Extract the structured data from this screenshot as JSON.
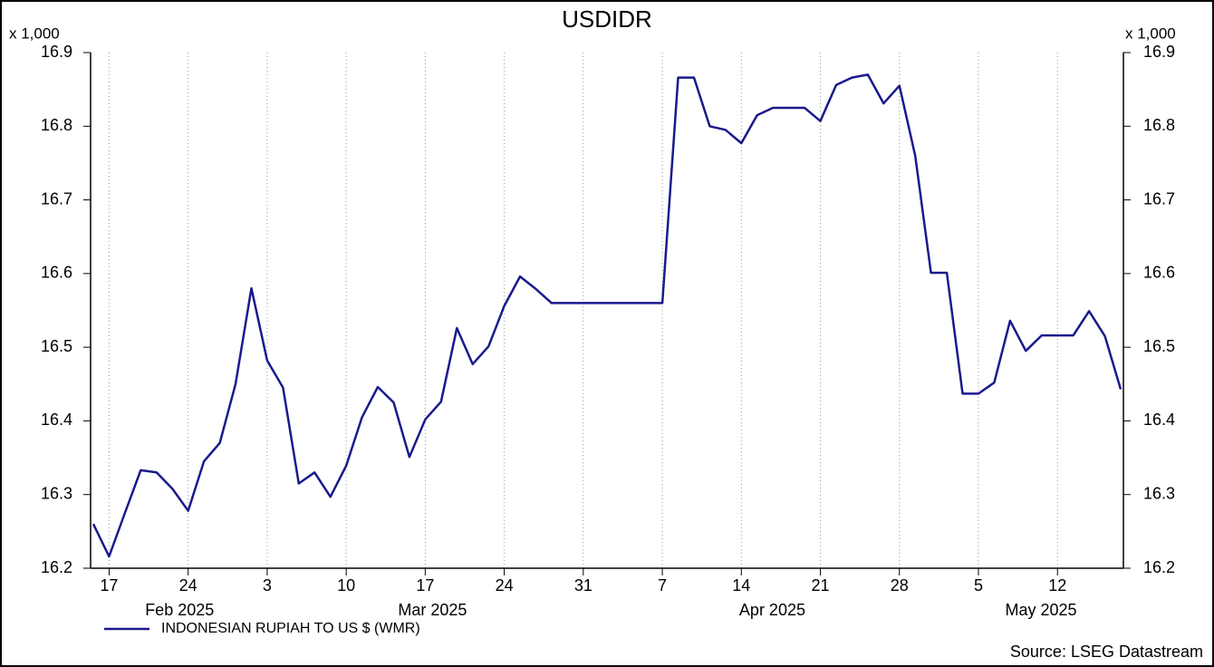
{
  "chart_data": {
    "type": "line",
    "title": "USDIDR",
    "y_multiplier": "x 1,000",
    "source": "Source: LSEG Datastream",
    "x": [
      "2025-02-14",
      "2025-02-17",
      "2025-02-18",
      "2025-02-19",
      "2025-02-20",
      "2025-02-21",
      "2025-02-24",
      "2025-02-25",
      "2025-02-26",
      "2025-02-27",
      "2025-02-28",
      "2025-03-03",
      "2025-03-04",
      "2025-03-05",
      "2025-03-06",
      "2025-03-07",
      "2025-03-10",
      "2025-03-11",
      "2025-03-12",
      "2025-03-13",
      "2025-03-14",
      "2025-03-17",
      "2025-03-18",
      "2025-03-19",
      "2025-03-20",
      "2025-03-21",
      "2025-03-24",
      "2025-03-25",
      "2025-03-26",
      "2025-03-27",
      "2025-03-28",
      "2025-03-31",
      "2025-04-01",
      "2025-04-02",
      "2025-04-03",
      "2025-04-04",
      "2025-04-07",
      "2025-04-08",
      "2025-04-09",
      "2025-04-10",
      "2025-04-11",
      "2025-04-14",
      "2025-04-15",
      "2025-04-16",
      "2025-04-17",
      "2025-04-18",
      "2025-04-21",
      "2025-04-22",
      "2025-04-23",
      "2025-04-24",
      "2025-04-25",
      "2025-04-28",
      "2025-04-29",
      "2025-04-30",
      "2025-05-01",
      "2025-05-02",
      "2025-05-05",
      "2025-05-06",
      "2025-05-07",
      "2025-05-08",
      "2025-05-09",
      "2025-05-12",
      "2025-05-13",
      "2025-05-14",
      "2025-05-15",
      "2025-05-16"
    ],
    "series": [
      {
        "name": "INDONESIAN RUPIAH TO US $ (WMR)",
        "color": "#1a1a8c",
        "values": [
          16.26,
          16.216,
          16.275,
          16.333,
          16.33,
          16.308,
          16.278,
          16.345,
          16.37,
          16.45,
          16.58,
          16.482,
          16.445,
          16.315,
          16.33,
          16.297,
          16.339,
          16.405,
          16.446,
          16.425,
          16.351,
          16.402,
          16.426,
          16.526,
          16.477,
          16.501,
          16.556,
          16.596,
          16.579,
          16.56,
          16.56,
          16.56,
          16.56,
          16.56,
          16.56,
          16.56,
          16.56,
          16.866,
          16.866,
          16.8,
          16.795,
          16.777,
          16.815,
          16.825,
          16.825,
          16.825,
          16.807,
          16.856,
          16.866,
          16.87,
          16.831,
          16.855,
          16.76,
          16.601,
          16.601,
          16.437,
          16.437,
          16.452,
          16.536,
          16.495,
          16.516,
          16.516,
          16.516,
          16.549,
          16.515,
          16.443
        ]
      }
    ],
    "xlim": [
      "2025-02-14",
      "2025-05-16"
    ],
    "xticks": [
      {
        "value": "2025-02-17",
        "label": "17"
      },
      {
        "value": "2025-02-24",
        "label": "24"
      },
      {
        "value": "2025-03-03",
        "label": "3"
      },
      {
        "value": "2025-03-10",
        "label": "10"
      },
      {
        "value": "2025-03-17",
        "label": "17"
      },
      {
        "value": "2025-03-24",
        "label": "24"
      },
      {
        "value": "2025-03-31",
        "label": "31"
      },
      {
        "value": "2025-04-07",
        "label": "7"
      },
      {
        "value": "2025-04-14",
        "label": "14"
      },
      {
        "value": "2025-04-21",
        "label": "21"
      },
      {
        "value": "2025-04-28",
        "label": "28"
      },
      {
        "value": "2025-05-05",
        "label": "5"
      },
      {
        "value": "2025-05-12",
        "label": "12"
      }
    ],
    "x_month_labels": [
      {
        "value": "2025-02",
        "label": "Feb 2025"
      },
      {
        "value": "2025-03",
        "label": "Mar 2025"
      },
      {
        "value": "2025-04",
        "label": "Apr 2025"
      },
      {
        "value": "2025-05",
        "label": "May 2025"
      }
    ],
    "ylim": [
      16.2,
      16.9
    ],
    "yticks": [
      16.2,
      16.3,
      16.4,
      16.5,
      16.6,
      16.7,
      16.8,
      16.9
    ],
    "y_axis_both_sides": true,
    "grid": "x"
  }
}
